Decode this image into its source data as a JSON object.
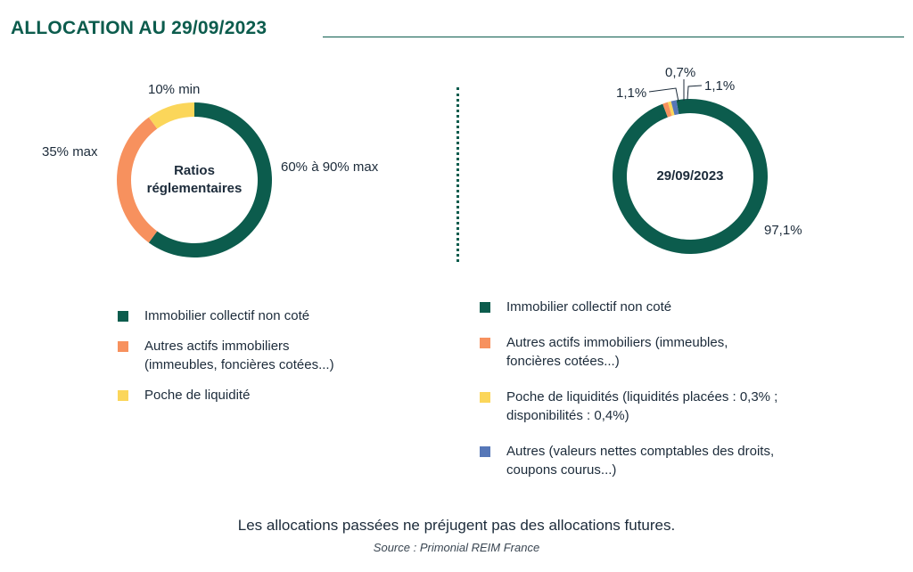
{
  "page_title": "ALLOCATION AU 29/09/2023",
  "colors": {
    "immobilier": "#0c5c4d",
    "autres_actifs": "#f7915e",
    "liquidite": "#fbd65a",
    "autres": "#5677b8"
  },
  "chart_data": [
    {
      "type": "pie",
      "variant": "donut",
      "center_label_line1": "Ratios",
      "center_label_line2": "réglementaires",
      "slices": [
        {
          "label": "Immobilier collectif non coté",
          "value": 60,
          "display": "60% à 90% max",
          "color": "#0c5c4d"
        },
        {
          "label": "Autres actifs immobiliers (immeubles, foncières cotées...)",
          "value": 30,
          "display": "35% max",
          "color": "#f7915e"
        },
        {
          "label": "Poche de liquidité",
          "value": 10,
          "display": "10% min",
          "color": "#fbd65a"
        }
      ],
      "legend": [
        {
          "line1": "Immobilier collectif non coté",
          "color": "#0c5c4d"
        },
        {
          "line1": "Autres actifs immobiliers",
          "line2": "(immeubles, foncières cotées...)",
          "color": "#f7915e"
        },
        {
          "line1": "Poche de liquidité",
          "color": "#fbd65a"
        }
      ]
    },
    {
      "type": "pie",
      "variant": "donut",
      "center_label": "29/09/2023",
      "slices": [
        {
          "label": "Immobilier collectif non coté",
          "value": 97.1,
          "display": "97,1%",
          "color": "#0c5c4d"
        },
        {
          "label": "Autres actifs immobiliers (immeubles, foncières cotées...)",
          "value": 1.1,
          "display": "1,1%",
          "color": "#f7915e"
        },
        {
          "label": "Poche de liquidités",
          "value": 0.7,
          "display": "0,7%",
          "color": "#fbd65a"
        },
        {
          "label": "Autres",
          "value": 1.1,
          "display": "1,1%",
          "color": "#5677b8"
        }
      ],
      "legend": [
        {
          "line1": "Immobilier collectif non coté",
          "color": "#0c5c4d"
        },
        {
          "line1": "Autres actifs immobiliers (immeubles,",
          "line2": "foncières cotées...)",
          "color": "#f7915e"
        },
        {
          "line1": "Poche de liquidités (liquidités placées : 0,3% ;",
          "line2": "disponibilités : 0,4%)",
          "color": "#fbd65a"
        },
        {
          "line1": "Autres (valeurs nettes comptables des droits,",
          "line2": "coupons courus...)",
          "color": "#5677b8"
        }
      ]
    }
  ],
  "footer": {
    "note": "Les allocations passées ne préjugent pas des allocations futures.",
    "source": "Source : Primonial REIM France"
  }
}
